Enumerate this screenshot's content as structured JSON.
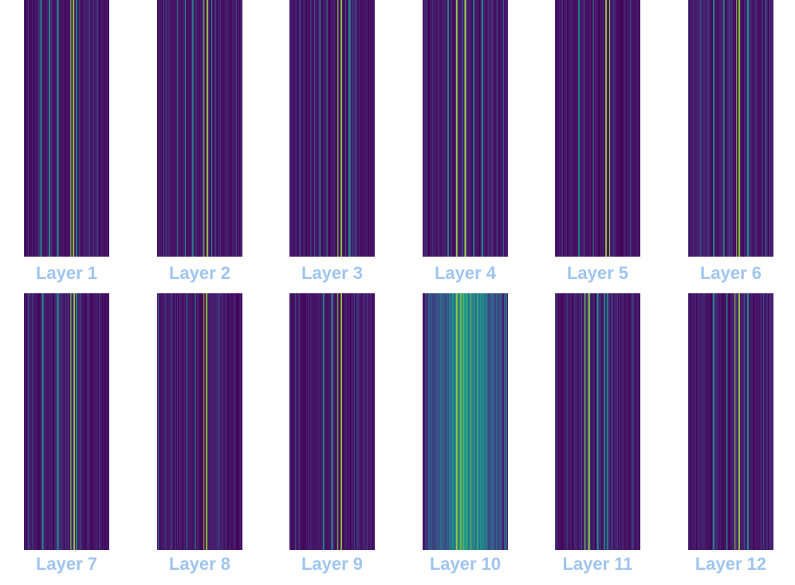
{
  "chart_data": {
    "type": "heatmap",
    "colormap": "viridis",
    "grid": false,
    "panels": [
      {
        "label": "Layer 1",
        "intensity": 0.18,
        "highlight_columns": [
          0.55,
          0.58,
          0.4,
          0.62,
          0.2,
          0.3
        ]
      },
      {
        "label": "Layer 2",
        "intensity": 0.18,
        "highlight_columns": [
          0.55,
          0.59,
          0.42,
          0.64,
          0.24,
          0.33
        ]
      },
      {
        "label": "Layer 3",
        "intensity": 0.16,
        "highlight_columns": [
          0.57,
          0.61,
          0.36,
          0.44,
          0.7
        ]
      },
      {
        "label": "Layer 4",
        "intensity": 0.2,
        "highlight_columns": [
          0.4,
          0.5,
          0.6,
          0.3,
          0.7
        ]
      },
      {
        "label": "Layer 5",
        "intensity": 0.16,
        "highlight_columns": [
          0.6,
          0.64,
          0.45,
          0.28
        ]
      },
      {
        "label": "Layer 6",
        "intensity": 0.2,
        "highlight_columns": [
          0.57,
          0.6,
          0.3,
          0.42,
          0.7
        ]
      },
      {
        "label": "Layer 7",
        "intensity": 0.18,
        "highlight_columns": [
          0.55,
          0.59,
          0.4,
          0.62,
          0.22
        ]
      },
      {
        "label": "Layer 8",
        "intensity": 0.16,
        "highlight_columns": [
          0.55,
          0.58,
          0.45,
          0.35
        ]
      },
      {
        "label": "Layer 9",
        "intensity": 0.16,
        "highlight_columns": [
          0.57,
          0.61,
          0.4,
          0.5
        ]
      },
      {
        "label": "Layer 10",
        "intensity": 0.45,
        "highlight_columns": [
          0.4,
          0.45,
          0.5,
          0.55,
          0.6,
          0.35,
          0.65
        ]
      },
      {
        "label": "Layer 11",
        "intensity": 0.2,
        "highlight_columns": [
          0.35,
          0.4,
          0.58,
          0.62,
          0.5
        ]
      },
      {
        "label": "Layer 12",
        "intensity": 0.2,
        "highlight_columns": [
          0.55,
          0.6,
          0.3,
          0.45,
          0.7
        ]
      }
    ]
  }
}
